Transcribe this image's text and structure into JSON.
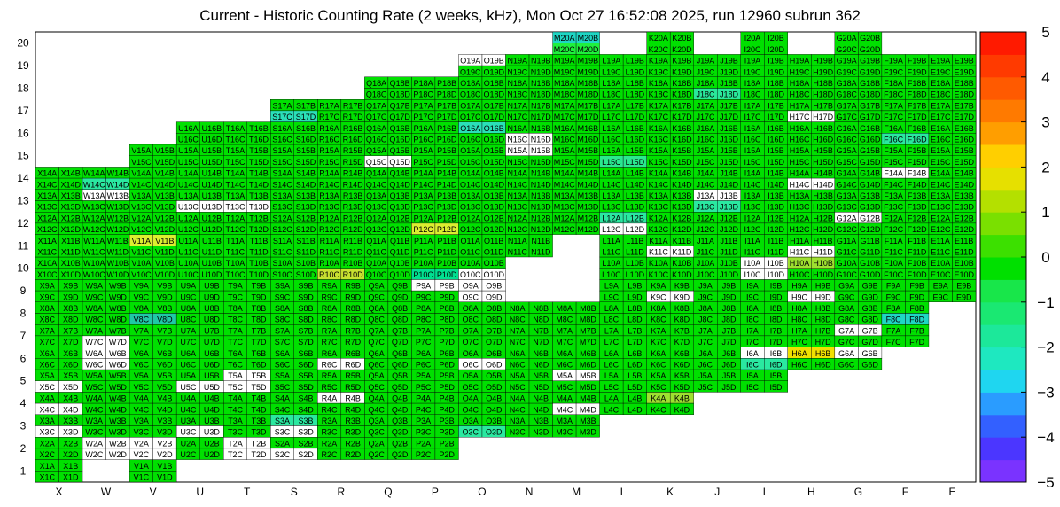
{
  "title": "Current - Historic Counting Rate (2 weeks, kHz), Mon Oct 27 16:52:08 2025, run 12960 subrun 362",
  "chart_data": {
    "type": "heatmap",
    "title": "Current - Historic Counting Rate (2 weeks, kHz), Mon Oct 27 16:52:08 2025, run 12960 subrun 362",
    "x_categories": [
      "X",
      "W",
      "V",
      "U",
      "T",
      "S",
      "R",
      "Q",
      "P",
      "O",
      "N",
      "M",
      "L",
      "K",
      "J",
      "I",
      "H",
      "G",
      "F",
      "E"
    ],
    "y_categories": [
      "1",
      "2",
      "3",
      "4",
      "5",
      "6",
      "7",
      "8",
      "9",
      "10",
      "11",
      "12",
      "13",
      "14",
      "15",
      "16",
      "17",
      "18",
      "19",
      "20"
    ],
    "colorbar": {
      "min": -5,
      "max": 5,
      "ticks": [
        "-5",
        "-4",
        "-3",
        "-2",
        "-1",
        "0",
        "1",
        "2",
        "3",
        "4",
        "5"
      ]
    },
    "row_ranges": {
      "1": [
        [
          "X",
          "X"
        ],
        [
          "V",
          "V"
        ]
      ],
      "2": [
        [
          "X",
          "P"
        ]
      ],
      "3": [
        [
          "X",
          "M"
        ]
      ],
      "4": [
        [
          "X",
          "K"
        ]
      ],
      "5": [
        [
          "X",
          "I"
        ]
      ],
      "6": [
        [
          "X",
          "G"
        ]
      ],
      "7": [
        [
          "X",
          "F"
        ]
      ],
      "8": [
        [
          "X",
          "F"
        ]
      ],
      "9": [
        [
          "X",
          "O"
        ],
        [
          "L",
          "E"
        ]
      ],
      "10": [
        [
          "X",
          "O"
        ],
        [
          "L",
          "E"
        ]
      ],
      "11": [
        [
          "X",
          "N"
        ],
        [
          "L",
          "E"
        ]
      ],
      "12": [
        [
          "X",
          "E"
        ]
      ],
      "13": [
        [
          "X",
          "E"
        ]
      ],
      "14": [
        [
          "X",
          "E"
        ]
      ],
      "15": [
        [
          "V",
          "E"
        ]
      ],
      "16": [
        [
          "U",
          "E"
        ]
      ],
      "17": [
        [
          "S",
          "E"
        ]
      ],
      "18": [
        [
          "Q",
          "E"
        ]
      ],
      "19": [
        [
          "O",
          "E"
        ]
      ],
      "20": [
        [
          "M",
          "M"
        ],
        [
          "K",
          "K"
        ],
        [
          "I",
          "I"
        ],
        [
          "G",
          "G"
        ]
      ]
    },
    "special": {
      "20": {
        "M": [
          "#1fd6c4",
          "#1ff03d"
        ],
        "K": [
          "#00e000",
          "#00e000"
        ],
        "I": [
          "#00e000",
          "#00e000"
        ],
        "G": [
          "#00e000",
          "#00e000"
        ]
      },
      "19": {
        "O": [
          "#ffffff",
          "#00e000"
        ],
        "N": [
          "#00e000",
          "#00e000"
        ]
      },
      "18": {
        "J": [
          "#00e000",
          "#2ae89a"
        ]
      },
      "17": {
        "S": [
          "#00e000",
          "#2ae0b8"
        ],
        "H": [
          "#00e000",
          "#ffffff"
        ]
      },
      "16": {
        "O": [
          "#2ae0b8",
          "#00e000"
        ],
        "N": [
          "#00e000",
          "#ffffff"
        ],
        "F": [
          "#00e000",
          "#2ae8a0"
        ]
      },
      "15": {
        "Q": [
          "#00e000",
          "#ffffff"
        ],
        "N": [
          "#ffffff",
          "#00e000"
        ],
        "L": [
          "#00e000",
          "#2ae890"
        ]
      },
      "14": {
        "W": [
          "#00e000",
          "#2ae8a0"
        ],
        "W2": [
          "#ffffff",
          "#ffffff"
        ],
        "I": [
          "#00e000",
          "#00e000"
        ],
        "H": [
          "#00e000",
          "#ffffff"
        ],
        "F": [
          "#ffffff",
          "#00e000"
        ]
      },
      "13": {
        "W": [
          "#ffffff",
          "#00e000"
        ],
        "U": [
          "#00e000",
          "#ffffff"
        ],
        "T": [
          "#00e000",
          "#ffffff"
        ],
        "J": [
          "#ffffff",
          "#2ae8a0"
        ]
      },
      "12": {
        "P": [
          "#00e000",
          "#dcee30"
        ],
        "L": [
          "#2ae8a0",
          "#ffffff"
        ],
        "G": [
          "#ffffff",
          "#00e000"
        ]
      },
      "11": {
        "V": [
          "#dcee30",
          "#00e000"
        ],
        "K": [
          "#00e000",
          "#ffffff"
        ],
        "H": [
          "#00e000",
          "#ffffff"
        ]
      },
      "10": {
        "P": [
          "#00e000",
          "#00e090"
        ],
        "O": [
          "#00e000",
          "#ffffff"
        ],
        "I": [
          "#ffffff",
          "#ffffff"
        ],
        "H": [
          "#9ee030",
          "#00e000"
        ],
        "R": [
          "#00e000",
          "#c8e030"
        ]
      },
      "9": {
        "P": [
          "#ffffff",
          "#00e000"
        ],
        "O": [
          "#ffffff",
          "#ffffff"
        ],
        "K": [
          "#00e000",
          "#ffffff"
        ],
        "H": [
          "#00e000",
          "#ffffff"
        ]
      },
      "8": {
        "V": [
          "#00e000",
          "#20c8a8"
        ],
        "F": [
          "#00e000",
          "#1fd6c4"
        ]
      },
      "7": {
        "W": [
          "#00e000",
          "#ffffff"
        ],
        "G": [
          "#ffffff",
          "#00e000"
        ]
      },
      "6": {
        "W": [
          "#ffffff",
          "#ffffff"
        ],
        "R": [
          "#00e000",
          "#ffffff"
        ],
        "O": [
          "#00e000",
          "#ffffff"
        ],
        "I": [
          "#ffffff",
          "#2ae8a0"
        ],
        "H": [
          "#f0e000",
          "#00e000"
        ],
        "G": [
          "#ffffff",
          "#00e000"
        ]
      },
      "5": {
        "X": [
          "#00e000",
          "#ffffff"
        ],
        "X2": [
          "#00e000",
          "#6a3cff"
        ],
        "U": [
          "#00e000",
          "#ffffff"
        ],
        "T": [
          "#ffffff",
          "#ffffff"
        ],
        "M": [
          "#ffffff",
          "#00e000"
        ]
      },
      "4": {
        "X": [
          "#00e000",
          "#ffffff"
        ],
        "R": [
          "#ffffff",
          "#00e000"
        ],
        "M": [
          "#00e000",
          "#ffffff"
        ],
        "K": [
          "#9ee030",
          "#00e000"
        ]
      },
      "3": {
        "X": [
          "#00e000",
          "#ffffff"
        ],
        "U": [
          "#00e000",
          "#ffffff"
        ],
        "S": [
          "#2ae8a0",
          "#ffffff"
        ],
        "O": [
          "#00e000",
          "#2ae8a0"
        ]
      },
      "2": {
        "W": [
          "#ffffff",
          "#ffffff"
        ],
        "V": [
          "#ffffff",
          "#ffffff"
        ],
        "T": [
          "#ffffff",
          "#ffffff"
        ],
        "S": [
          "#00e000",
          "#ffffff"
        ]
      }
    }
  }
}
